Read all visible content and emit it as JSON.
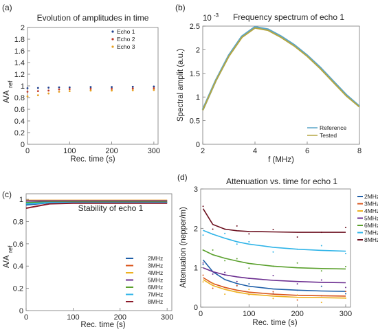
{
  "chart_data": [
    {
      "panel_label": "(a)",
      "type": "scatter",
      "title": "Evolution of amplitudes in time",
      "xlabel": "Rec. time (s)",
      "ylabel_main": "A/A",
      "ylabel_sub": "ref",
      "xlim": [
        0,
        310
      ],
      "ylim": [
        0,
        2
      ],
      "xticks": [
        "0",
        "100",
        "200",
        "300"
      ],
      "yticks": [
        "0",
        "0.2",
        "0.4",
        "0.6",
        "0.8",
        "1",
        "1.2",
        "1.4",
        "1.6",
        "1.8",
        "2"
      ],
      "legend_position": "top-right",
      "series": [
        {
          "name": "Echo 1",
          "color": "#1f3f8f",
          "x": [
            0,
            25,
            50,
            75,
            100,
            150,
            200,
            250,
            300
          ],
          "y": [
            0.96,
            0.965,
            0.97,
            0.975,
            0.975,
            0.98,
            0.98,
            0.985,
            0.99
          ]
        },
        {
          "name": "Echo 2",
          "color": "#c0392b",
          "x": [
            0,
            25,
            50,
            75,
            100,
            150,
            200,
            250,
            300
          ],
          "y": [
            0.9,
            0.91,
            0.92,
            0.94,
            0.945,
            0.95,
            0.95,
            0.955,
            0.96
          ]
        },
        {
          "name": "Echo 3",
          "color": "#e8a020",
          "x": [
            0,
            25,
            50,
            75,
            100,
            150,
            200,
            250,
            300
          ],
          "y": [
            0.82,
            0.84,
            0.87,
            0.9,
            0.91,
            0.92,
            0.92,
            0.925,
            0.93
          ]
        }
      ]
    },
    {
      "panel_label": "(b)",
      "type": "line",
      "title": "Frequency spectrum of echo 1",
      "xlabel": "f (MHz)",
      "ylabel": "Spectral amplit (a.u.)",
      "exponent": "10",
      "exponent_power": "-3",
      "xlim": [
        2,
        8
      ],
      "ylim": [
        0,
        0.0025
      ],
      "xticks": [
        "2",
        "4",
        "6",
        "8"
      ],
      "yticks": [
        "0",
        "0.5",
        "1",
        "1.5",
        "2",
        "2.5"
      ],
      "legend_position": "bottom-right",
      "series": [
        {
          "name": "Reference",
          "color": "#5aa5c8",
          "x": [
            2,
            2.5,
            3,
            3.5,
            4,
            4.5,
            5,
            5.5,
            6,
            6.5,
            7,
            7.5,
            8
          ],
          "y": [
            0.00073,
            0.00135,
            0.00188,
            0.00228,
            0.00248,
            0.00243,
            0.00228,
            0.0021,
            0.00188,
            0.00162,
            0.00133,
            0.00104,
            0.0008
          ]
        },
        {
          "name": "Tested",
          "color": "#b5a642",
          "x": [
            2,
            2.5,
            3,
            3.5,
            4,
            4.5,
            5,
            5.5,
            6,
            6.5,
            7,
            7.5,
            8
          ],
          "y": [
            0.00072,
            0.00134,
            0.00186,
            0.00226,
            0.00246,
            0.00241,
            0.00226,
            0.00208,
            0.00186,
            0.0016,
            0.00131,
            0.00102,
            0.00079
          ]
        }
      ]
    },
    {
      "panel_label": "(c)",
      "type": "line",
      "title": "Stability of echo 1",
      "xlabel": "Rec. time (s)",
      "ylabel_main": "A/A",
      "ylabel_sub": "ref",
      "xlim": [
        0,
        310
      ],
      "ylim": [
        0,
        1.05
      ],
      "xticks": [
        "0",
        "100",
        "200",
        "300"
      ],
      "yticks": [
        "0",
        "0.2",
        "0.4",
        "0.6",
        "0.8",
        "1"
      ],
      "legend_position": "bottom-right",
      "series": [
        {
          "name": "2MHz",
          "color": "#1f5fa8",
          "x": [
            0,
            50,
            100,
            150,
            200,
            250,
            300
          ],
          "y": [
            0.95,
            0.97,
            0.975,
            0.975,
            0.975,
            0.975,
            0.975
          ]
        },
        {
          "name": "3MHz",
          "color": "#d95319",
          "x": [
            0,
            50,
            100,
            150,
            200,
            250,
            300
          ],
          "y": [
            0.99,
            0.99,
            0.99,
            0.99,
            0.99,
            0.99,
            0.99
          ]
        },
        {
          "name": "4MHz",
          "color": "#edb120",
          "x": [
            0,
            50,
            100,
            150,
            200,
            250,
            300
          ],
          "y": [
            0.99,
            0.99,
            0.99,
            0.99,
            0.99,
            0.99,
            0.99
          ]
        },
        {
          "name": "5MHz",
          "color": "#6a2c8f",
          "x": [
            0,
            50,
            100,
            150,
            200,
            250,
            300
          ],
          "y": [
            0.985,
            0.985,
            0.985,
            0.985,
            0.985,
            0.985,
            0.985
          ]
        },
        {
          "name": "6MHz",
          "color": "#5aa02c",
          "x": [
            0,
            50,
            100,
            150,
            200,
            250,
            300
          ],
          "y": [
            0.97,
            0.975,
            0.975,
            0.975,
            0.975,
            0.975,
            0.975
          ]
        },
        {
          "name": "7MHz",
          "color": "#2fb4e8",
          "x": [
            0,
            50,
            100,
            150,
            200,
            250,
            300
          ],
          "y": [
            0.96,
            0.97,
            0.97,
            0.97,
            0.97,
            0.97,
            0.97
          ]
        },
        {
          "name": "8MHz",
          "color": "#8b1a2a",
          "x": [
            0,
            50,
            100,
            150,
            200,
            250,
            300
          ],
          "y": [
            0.92,
            0.96,
            0.965,
            0.965,
            0.965,
            0.965,
            0.965
          ]
        }
      ]
    },
    {
      "panel_label": "(d)",
      "type": "line",
      "title": "Attenuation vs. time for echo 1",
      "xlabel": "Rec. time (s)",
      "ylabel": "Attenuation (nepper/m)",
      "xlim": [
        0,
        310
      ],
      "ylim": [
        0,
        3
      ],
      "xticks": [
        "0",
        "100",
        "200",
        "300"
      ],
      "yticks": [
        "0",
        "1",
        "2",
        "3"
      ],
      "legend_position": "top-right",
      "series": [
        {
          "name": "2MHz",
          "color": "#1f5fa8",
          "x": [
            5,
            25,
            50,
            75,
            100,
            150,
            200,
            250,
            300
          ],
          "y": [
            1.2,
            0.9,
            0.7,
            0.6,
            0.53,
            0.46,
            0.43,
            0.41,
            0.4
          ]
        },
        {
          "name": "3MHz",
          "color": "#d95319",
          "x": [
            5,
            25,
            50,
            75,
            100,
            150,
            200,
            250,
            300
          ],
          "y": [
            0.75,
            0.6,
            0.5,
            0.43,
            0.38,
            0.33,
            0.3,
            0.29,
            0.28
          ]
        },
        {
          "name": "4MHz",
          "color": "#edb120",
          "x": [
            5,
            25,
            50,
            75,
            100,
            150,
            200,
            250,
            300
          ],
          "y": [
            0.7,
            0.55,
            0.45,
            0.38,
            0.33,
            0.28,
            0.25,
            0.24,
            0.23
          ]
        },
        {
          "name": "5MHz",
          "color": "#6a2c8f",
          "x": [
            5,
            25,
            50,
            75,
            100,
            150,
            200,
            250,
            300
          ],
          "y": [
            1.0,
            0.9,
            0.82,
            0.77,
            0.73,
            0.68,
            0.65,
            0.63,
            0.62
          ]
        },
        {
          "name": "6MHz",
          "color": "#5aa02c",
          "x": [
            5,
            25,
            50,
            75,
            100,
            150,
            200,
            250,
            300
          ],
          "y": [
            1.45,
            1.33,
            1.24,
            1.17,
            1.11,
            1.04,
            1.0,
            0.98,
            0.97
          ]
        },
        {
          "name": "7MHz",
          "color": "#2fb4e8",
          "x": [
            5,
            25,
            50,
            75,
            100,
            150,
            200,
            250,
            300
          ],
          "y": [
            1.95,
            1.85,
            1.75,
            1.66,
            1.6,
            1.52,
            1.47,
            1.44,
            1.42
          ]
        },
        {
          "name": "8MHz",
          "color": "#6b0f1e",
          "x": [
            5,
            25,
            50,
            75,
            100,
            150,
            200,
            250,
            300
          ],
          "y": [
            2.5,
            2.1,
            1.98,
            1.94,
            1.92,
            1.91,
            1.9,
            1.9,
            1.9
          ]
        }
      ]
    }
  ]
}
